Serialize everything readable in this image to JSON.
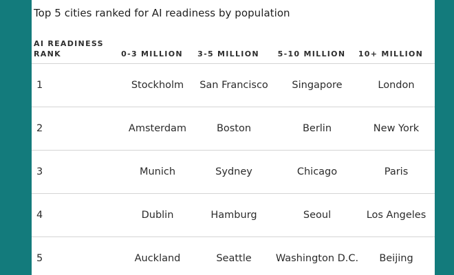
{
  "chart_data": {
    "type": "table",
    "title": "Top 5 cities ranked for AI readiness by population",
    "columns": [
      "AI READINESS RANK",
      "0-3 MILLION",
      "3-5 MILLION",
      "5-10 MILLION",
      "10+ MILLION"
    ],
    "rows": [
      {
        "rank": "1",
        "cities": [
          "Stockholm",
          "San Francisco",
          "Singapore",
          "London"
        ]
      },
      {
        "rank": "2",
        "cities": [
          "Amsterdam",
          "Boston",
          "Berlin",
          "New York"
        ]
      },
      {
        "rank": "3",
        "cities": [
          "Munich",
          "Sydney",
          "Chicago",
          "Paris"
        ]
      },
      {
        "rank": "4",
        "cities": [
          "Dublin",
          "Hamburg",
          "Seoul",
          "Los Angeles"
        ]
      },
      {
        "rank": "5",
        "cities": [
          "Auckland",
          "Seattle",
          "Washington D.C.",
          "Beijing"
        ]
      }
    ]
  },
  "colors": {
    "background": "#137b7c",
    "card": "#ffffff",
    "text": "#2b2b2b",
    "rule": "#d4d4d4"
  }
}
